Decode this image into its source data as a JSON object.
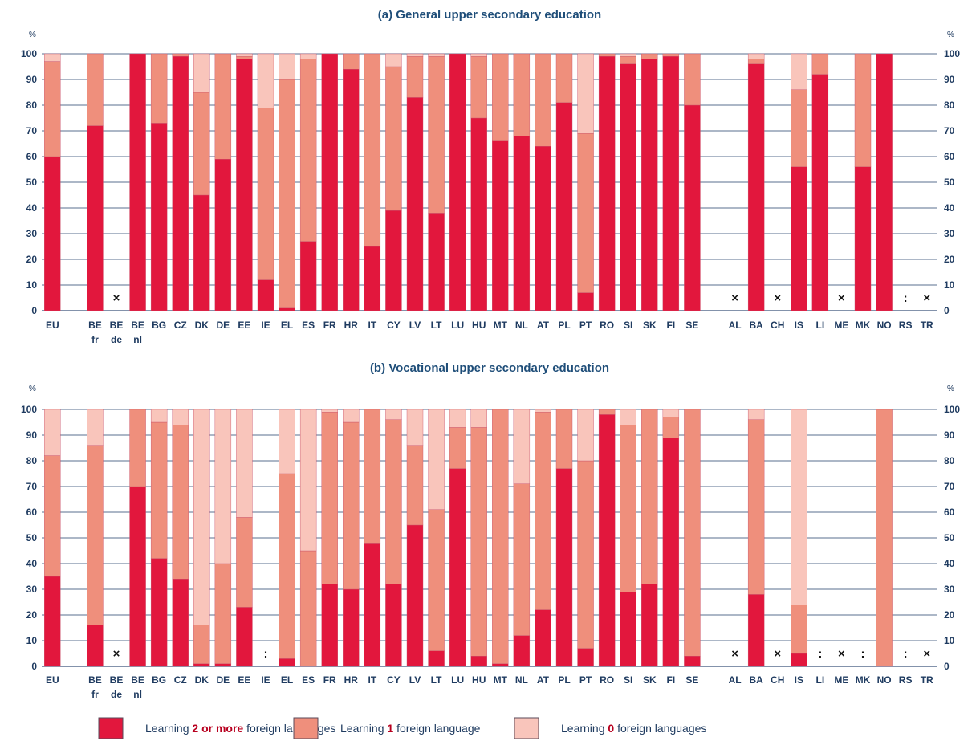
{
  "colors": {
    "two_or_more": "#e2173d",
    "one": "#ef8f7c",
    "zero": "#f9c5bb",
    "axis_text": "#1f3b60",
    "title": "#1f4e79",
    "grid": "#5a6f8f"
  },
  "legend": [
    {
      "key": "two_or_more",
      "pre": "Learning ",
      "em": "2 or more",
      "post": " foreign languages"
    },
    {
      "key": "one",
      "pre": "Learning ",
      "em": "1",
      "post": " foreign language"
    },
    {
      "key": "zero",
      "pre": "Learning ",
      "em": "0",
      "post": " foreign languages"
    }
  ],
  "chart_data": [
    {
      "type": "bar",
      "stacked": true,
      "title": "(a)   General upper secondary education",
      "unit_label": "%",
      "ylim": [
        0,
        100
      ],
      "yticks": [
        0,
        10,
        20,
        30,
        40,
        50,
        60,
        70,
        80,
        90,
        100
      ],
      "grid": true,
      "categories": [
        {
          "label": "EU",
          "two": 60,
          "one": 37,
          "zero": 3
        },
        {
          "label": "",
          "gap": true
        },
        {
          "label": "BE",
          "sub": "fr",
          "two": 72,
          "one": 28,
          "zero": 0
        },
        {
          "label": "BE",
          "sub": "de",
          "flag": "×"
        },
        {
          "label": "BE",
          "sub": "nl",
          "two": 100,
          "one": 0,
          "zero": 0
        },
        {
          "label": "BG",
          "two": 73,
          "one": 27,
          "zero": 0
        },
        {
          "label": "CZ",
          "two": 99,
          "one": 1,
          "zero": 0
        },
        {
          "label": "DK",
          "two": 45,
          "one": 40,
          "zero": 15
        },
        {
          "label": "DE",
          "two": 59,
          "one": 41,
          "zero": 0
        },
        {
          "label": "EE",
          "two": 98,
          "one": 1,
          "zero": 1
        },
        {
          "label": "IE",
          "two": 12,
          "one": 67,
          "zero": 21
        },
        {
          "label": "EL",
          "two": 1,
          "one": 89,
          "zero": 10
        },
        {
          "label": "ES",
          "two": 27,
          "one": 71,
          "zero": 2
        },
        {
          "label": "FR",
          "two": 100,
          "one": 0,
          "zero": 0
        },
        {
          "label": "HR",
          "two": 94,
          "one": 6,
          "zero": 0
        },
        {
          "label": "IT",
          "two": 25,
          "one": 75,
          "zero": 0
        },
        {
          "label": "CY",
          "two": 39,
          "one": 56,
          "zero": 5
        },
        {
          "label": "LV",
          "two": 83,
          "one": 16,
          "zero": 1
        },
        {
          "label": "LT",
          "two": 38,
          "one": 61,
          "zero": 1
        },
        {
          "label": "LU",
          "two": 100,
          "one": 0,
          "zero": 0
        },
        {
          "label": "HU",
          "two": 75,
          "one": 24,
          "zero": 1
        },
        {
          "label": "MT",
          "two": 66,
          "one": 34,
          "zero": 0
        },
        {
          "label": "NL",
          "two": 68,
          "one": 32,
          "zero": 0
        },
        {
          "label": "AT",
          "two": 64,
          "one": 36,
          "zero": 0
        },
        {
          "label": "PL",
          "two": 81,
          "one": 19,
          "zero": 0
        },
        {
          "label": "PT",
          "two": 7,
          "one": 62,
          "zero": 31
        },
        {
          "label": "RO",
          "two": 99,
          "one": 1,
          "zero": 0
        },
        {
          "label": "SI",
          "two": 96,
          "one": 3,
          "zero": 1
        },
        {
          "label": "SK",
          "two": 98,
          "one": 2,
          "zero": 0
        },
        {
          "label": "FI",
          "two": 99,
          "one": 1,
          "zero": 0
        },
        {
          "label": "SE",
          "two": 80,
          "one": 20,
          "zero": 0
        },
        {
          "label": "",
          "gap": true
        },
        {
          "label": "AL",
          "flag": "×"
        },
        {
          "label": "BA",
          "two": 96,
          "one": 2,
          "zero": 2
        },
        {
          "label": "CH",
          "flag": "×"
        },
        {
          "label": "IS",
          "two": 56,
          "one": 30,
          "zero": 14
        },
        {
          "label": "LI",
          "two": 92,
          "one": 8,
          "zero": 0
        },
        {
          "label": "ME",
          "flag": "×"
        },
        {
          "label": "MK",
          "two": 56,
          "one": 44,
          "zero": 0
        },
        {
          "label": "NO",
          "two": 100,
          "one": 0,
          "zero": 0
        },
        {
          "label": "RS",
          "flag": ":"
        },
        {
          "label": "TR",
          "flag": "×"
        }
      ]
    },
    {
      "type": "bar",
      "stacked": true,
      "title": "(b)   Vocational upper secondary education",
      "unit_label": "%",
      "ylim": [
        0,
        100
      ],
      "yticks": [
        0,
        10,
        20,
        30,
        40,
        50,
        60,
        70,
        80,
        90,
        100
      ],
      "grid": true,
      "categories": [
        {
          "label": "EU",
          "two": 35,
          "one": 47,
          "zero": 18
        },
        {
          "label": "",
          "gap": true
        },
        {
          "label": "BE",
          "sub": "fr",
          "two": 16,
          "one": 70,
          "zero": 14
        },
        {
          "label": "BE",
          "sub": "de",
          "flag": "×"
        },
        {
          "label": "BE",
          "sub": "nl",
          "two": 70,
          "one": 30,
          "zero": 0
        },
        {
          "label": "BG",
          "two": 42,
          "one": 53,
          "zero": 5
        },
        {
          "label": "CZ",
          "two": 34,
          "one": 60,
          "zero": 6
        },
        {
          "label": "DK",
          "two": 1,
          "one": 15,
          "zero": 84
        },
        {
          "label": "DE",
          "two": 1,
          "one": 39,
          "zero": 60
        },
        {
          "label": "EE",
          "two": 23,
          "one": 35,
          "zero": 42
        },
        {
          "label": "IE",
          "flag": ":"
        },
        {
          "label": "EL",
          "two": 3,
          "one": 72,
          "zero": 25
        },
        {
          "label": "ES",
          "two": 0,
          "one": 45,
          "zero": 55
        },
        {
          "label": "FR",
          "two": 32,
          "one": 67,
          "zero": 1
        },
        {
          "label": "HR",
          "two": 30,
          "one": 65,
          "zero": 5
        },
        {
          "label": "IT",
          "two": 48,
          "one": 52,
          "zero": 0
        },
        {
          "label": "CY",
          "two": 32,
          "one": 64,
          "zero": 4
        },
        {
          "label": "LV",
          "two": 55,
          "one": 31,
          "zero": 14
        },
        {
          "label": "LT",
          "two": 6,
          "one": 55,
          "zero": 39
        },
        {
          "label": "LU",
          "two": 77,
          "one": 16,
          "zero": 7
        },
        {
          "label": "HU",
          "two": 4,
          "one": 89,
          "zero": 7
        },
        {
          "label": "MT",
          "two": 1,
          "one": 99,
          "zero": 0
        },
        {
          "label": "NL",
          "two": 12,
          "one": 59,
          "zero": 29
        },
        {
          "label": "AT",
          "two": 22,
          "one": 77,
          "zero": 1
        },
        {
          "label": "PL",
          "two": 77,
          "one": 23,
          "zero": 0
        },
        {
          "label": "PT",
          "two": 7,
          "one": 73,
          "zero": 20
        },
        {
          "label": "RO",
          "two": 98,
          "one": 2,
          "zero": 0
        },
        {
          "label": "SI",
          "two": 29,
          "one": 65,
          "zero": 6
        },
        {
          "label": "SK",
          "two": 32,
          "one": 68,
          "zero": 0
        },
        {
          "label": "FI",
          "two": 89,
          "one": 8,
          "zero": 3
        },
        {
          "label": "SE",
          "two": 4,
          "one": 96,
          "zero": 0
        },
        {
          "label": "",
          "gap": true
        },
        {
          "label": "AL",
          "flag": "×"
        },
        {
          "label": "BA",
          "two": 28,
          "one": 68,
          "zero": 4
        },
        {
          "label": "CH",
          "flag": "×"
        },
        {
          "label": "IS",
          "two": 5,
          "one": 19,
          "zero": 76
        },
        {
          "label": "LI",
          "flag": ":"
        },
        {
          "label": "ME",
          "flag": "×"
        },
        {
          "label": "MK",
          "flag": ":"
        },
        {
          "label": "NO",
          "two": 0,
          "one": 100,
          "zero": 0
        },
        {
          "label": "RS",
          "flag": ":"
        },
        {
          "label": "TR",
          "flag": "×"
        }
      ]
    }
  ]
}
